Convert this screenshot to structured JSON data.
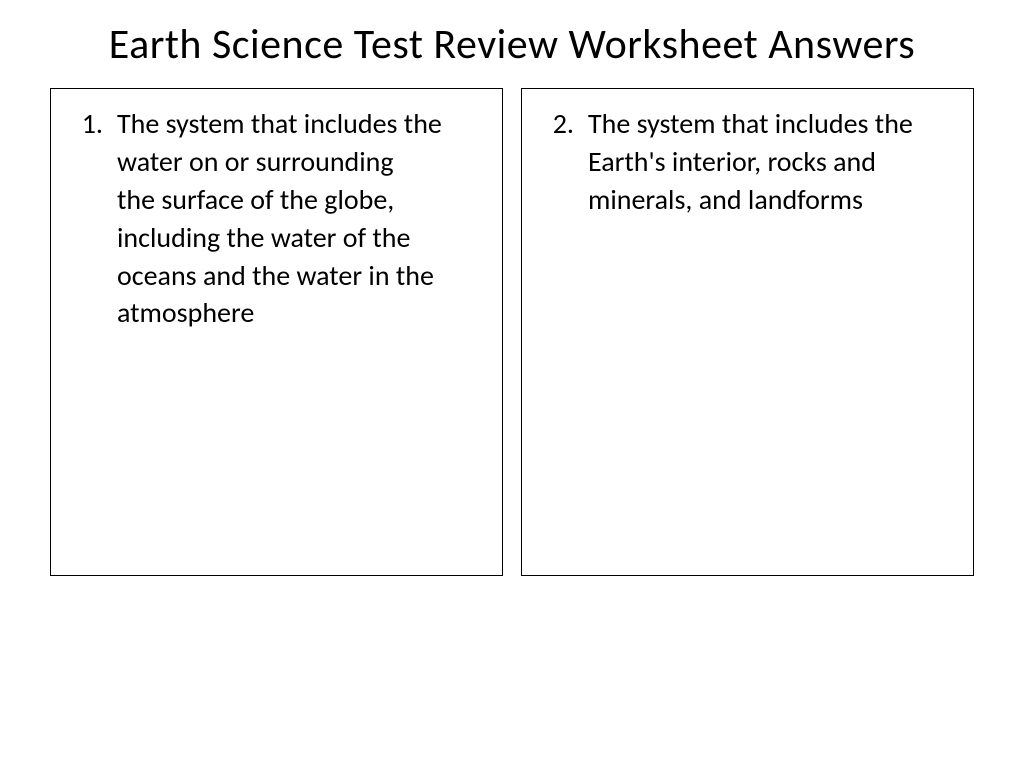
{
  "document": {
    "title": "Earth Science Test Review Worksheet Answers",
    "background_color": "#ffffff",
    "text_color": "#000000",
    "title_fontsize": 42,
    "body_fontsize": 28,
    "border_color": "#000000"
  },
  "answers": [
    {
      "number": "1.",
      "text": "The system that includes the water on or surrounding the surface of the globe, including the water of the oceans and the water in the atmosphere"
    },
    {
      "number": "2.",
      "text": "The system that includes the Earth's interior, rocks and minerals, and landforms"
    }
  ]
}
